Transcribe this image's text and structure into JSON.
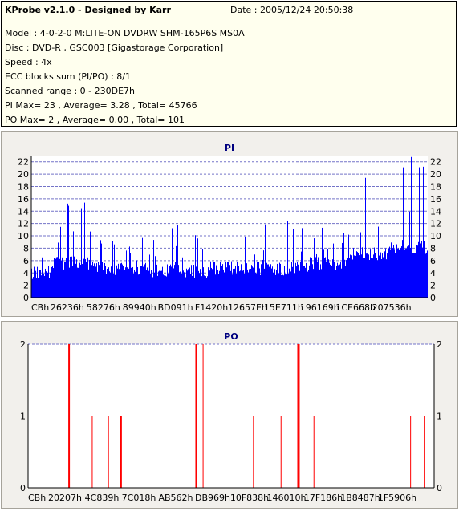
{
  "header": {
    "title": "KProbe v2.1.0 - Designed by Karr",
    "date": "Date : 2005/12/24 20:50:38",
    "lines": [
      "Model : 4-0-2-0 M:LITE-ON DVDRW SHM-165P6S MS0A",
      "Disc : DVD-R , GSC003 [Gigastorage Corporation]",
      "Speed : 4x",
      "ECC blocks sum (PI/PO) : 8/1",
      "Scanned range : 0 - 230DE7h",
      "PI Max= 23 , Average= 3.28 , Total= 45766",
      "PO Max= 2 , Average= 0.00 , Total= 101"
    ]
  },
  "colors": {
    "pi_bars": "#0000FF",
    "po_bars": "#FF0000",
    "plot_bg": "#FFFFFF",
    "grid": "#7373C8",
    "title": "#000080"
  },
  "chart_data": [
    {
      "type": "bar",
      "title": "PI",
      "ylim": [
        0,
        23
      ],
      "yticks": [
        0,
        2,
        4,
        6,
        8,
        10,
        12,
        14,
        16,
        18,
        20,
        22
      ],
      "grid": true,
      "x_tick_labels": [
        "CBh",
        "26236h",
        "58276h",
        "89940h",
        "BD091h",
        "F1420h",
        "12657Eh",
        "15E711h",
        "196169h",
        "1CE668h",
        "207536h"
      ],
      "x_range_hex": [
        "0",
        "230DE7"
      ],
      "series": [
        {
          "segments": [
            {
              "start": 0.0,
              "end": 0.05,
              "base": 3.0,
              "peak": 9
            },
            {
              "start": 0.05,
              "end": 0.15,
              "base": 4.5,
              "peak": 16
            },
            {
              "start": 0.15,
              "end": 0.3,
              "base": 3.6,
              "peak": 14
            },
            {
              "start": 0.3,
              "end": 0.45,
              "base": 3.2,
              "peak": 12
            },
            {
              "start": 0.45,
              "end": 0.55,
              "base": 3.7,
              "peak": 15
            },
            {
              "start": 0.55,
              "end": 0.7,
              "base": 3.6,
              "peak": 13
            },
            {
              "start": 0.7,
              "end": 0.8,
              "base": 4.5,
              "peak": 16
            },
            {
              "start": 0.8,
              "end": 0.9,
              "base": 6.0,
              "peak": 21
            },
            {
              "start": 0.9,
              "end": 1.0,
              "base": 7.0,
              "peak": 23
            }
          ]
        }
      ]
    },
    {
      "type": "bar",
      "title": "PO",
      "ylim": [
        0,
        2
      ],
      "yticks": [
        0,
        1,
        2
      ],
      "grid": true,
      "x_tick_labels": [
        "CBh",
        "20207h",
        "4C839h",
        "7C018h",
        "AB562h",
        "DB969h",
        "10F838h",
        "146010h",
        "17F186h",
        "1B8487h",
        "1F5906h"
      ],
      "x_range_hex": [
        "0",
        "230DE7"
      ],
      "series": [
        {
          "spikes": [
            {
              "x": 0.099,
              "value": 2,
              "w": 2
            },
            {
              "x": 0.157,
              "value": 1,
              "w": 1
            },
            {
              "x": 0.197,
              "value": 1,
              "w": 1
            },
            {
              "x": 0.227,
              "value": 1,
              "w": 2
            },
            {
              "x": 0.412,
              "value": 2,
              "w": 2
            },
            {
              "x": 0.43,
              "value": 2,
              "w": 1
            },
            {
              "x": 0.554,
              "value": 1,
              "w": 1
            },
            {
              "x": 0.622,
              "value": 1,
              "w": 1
            },
            {
              "x": 0.663,
              "value": 2,
              "w": 3
            },
            {
              "x": 0.703,
              "value": 1,
              "w": 1
            },
            {
              "x": 0.941,
              "value": 1,
              "w": 1
            },
            {
              "x": 0.976,
              "value": 1,
              "w": 1
            }
          ]
        }
      ]
    }
  ]
}
